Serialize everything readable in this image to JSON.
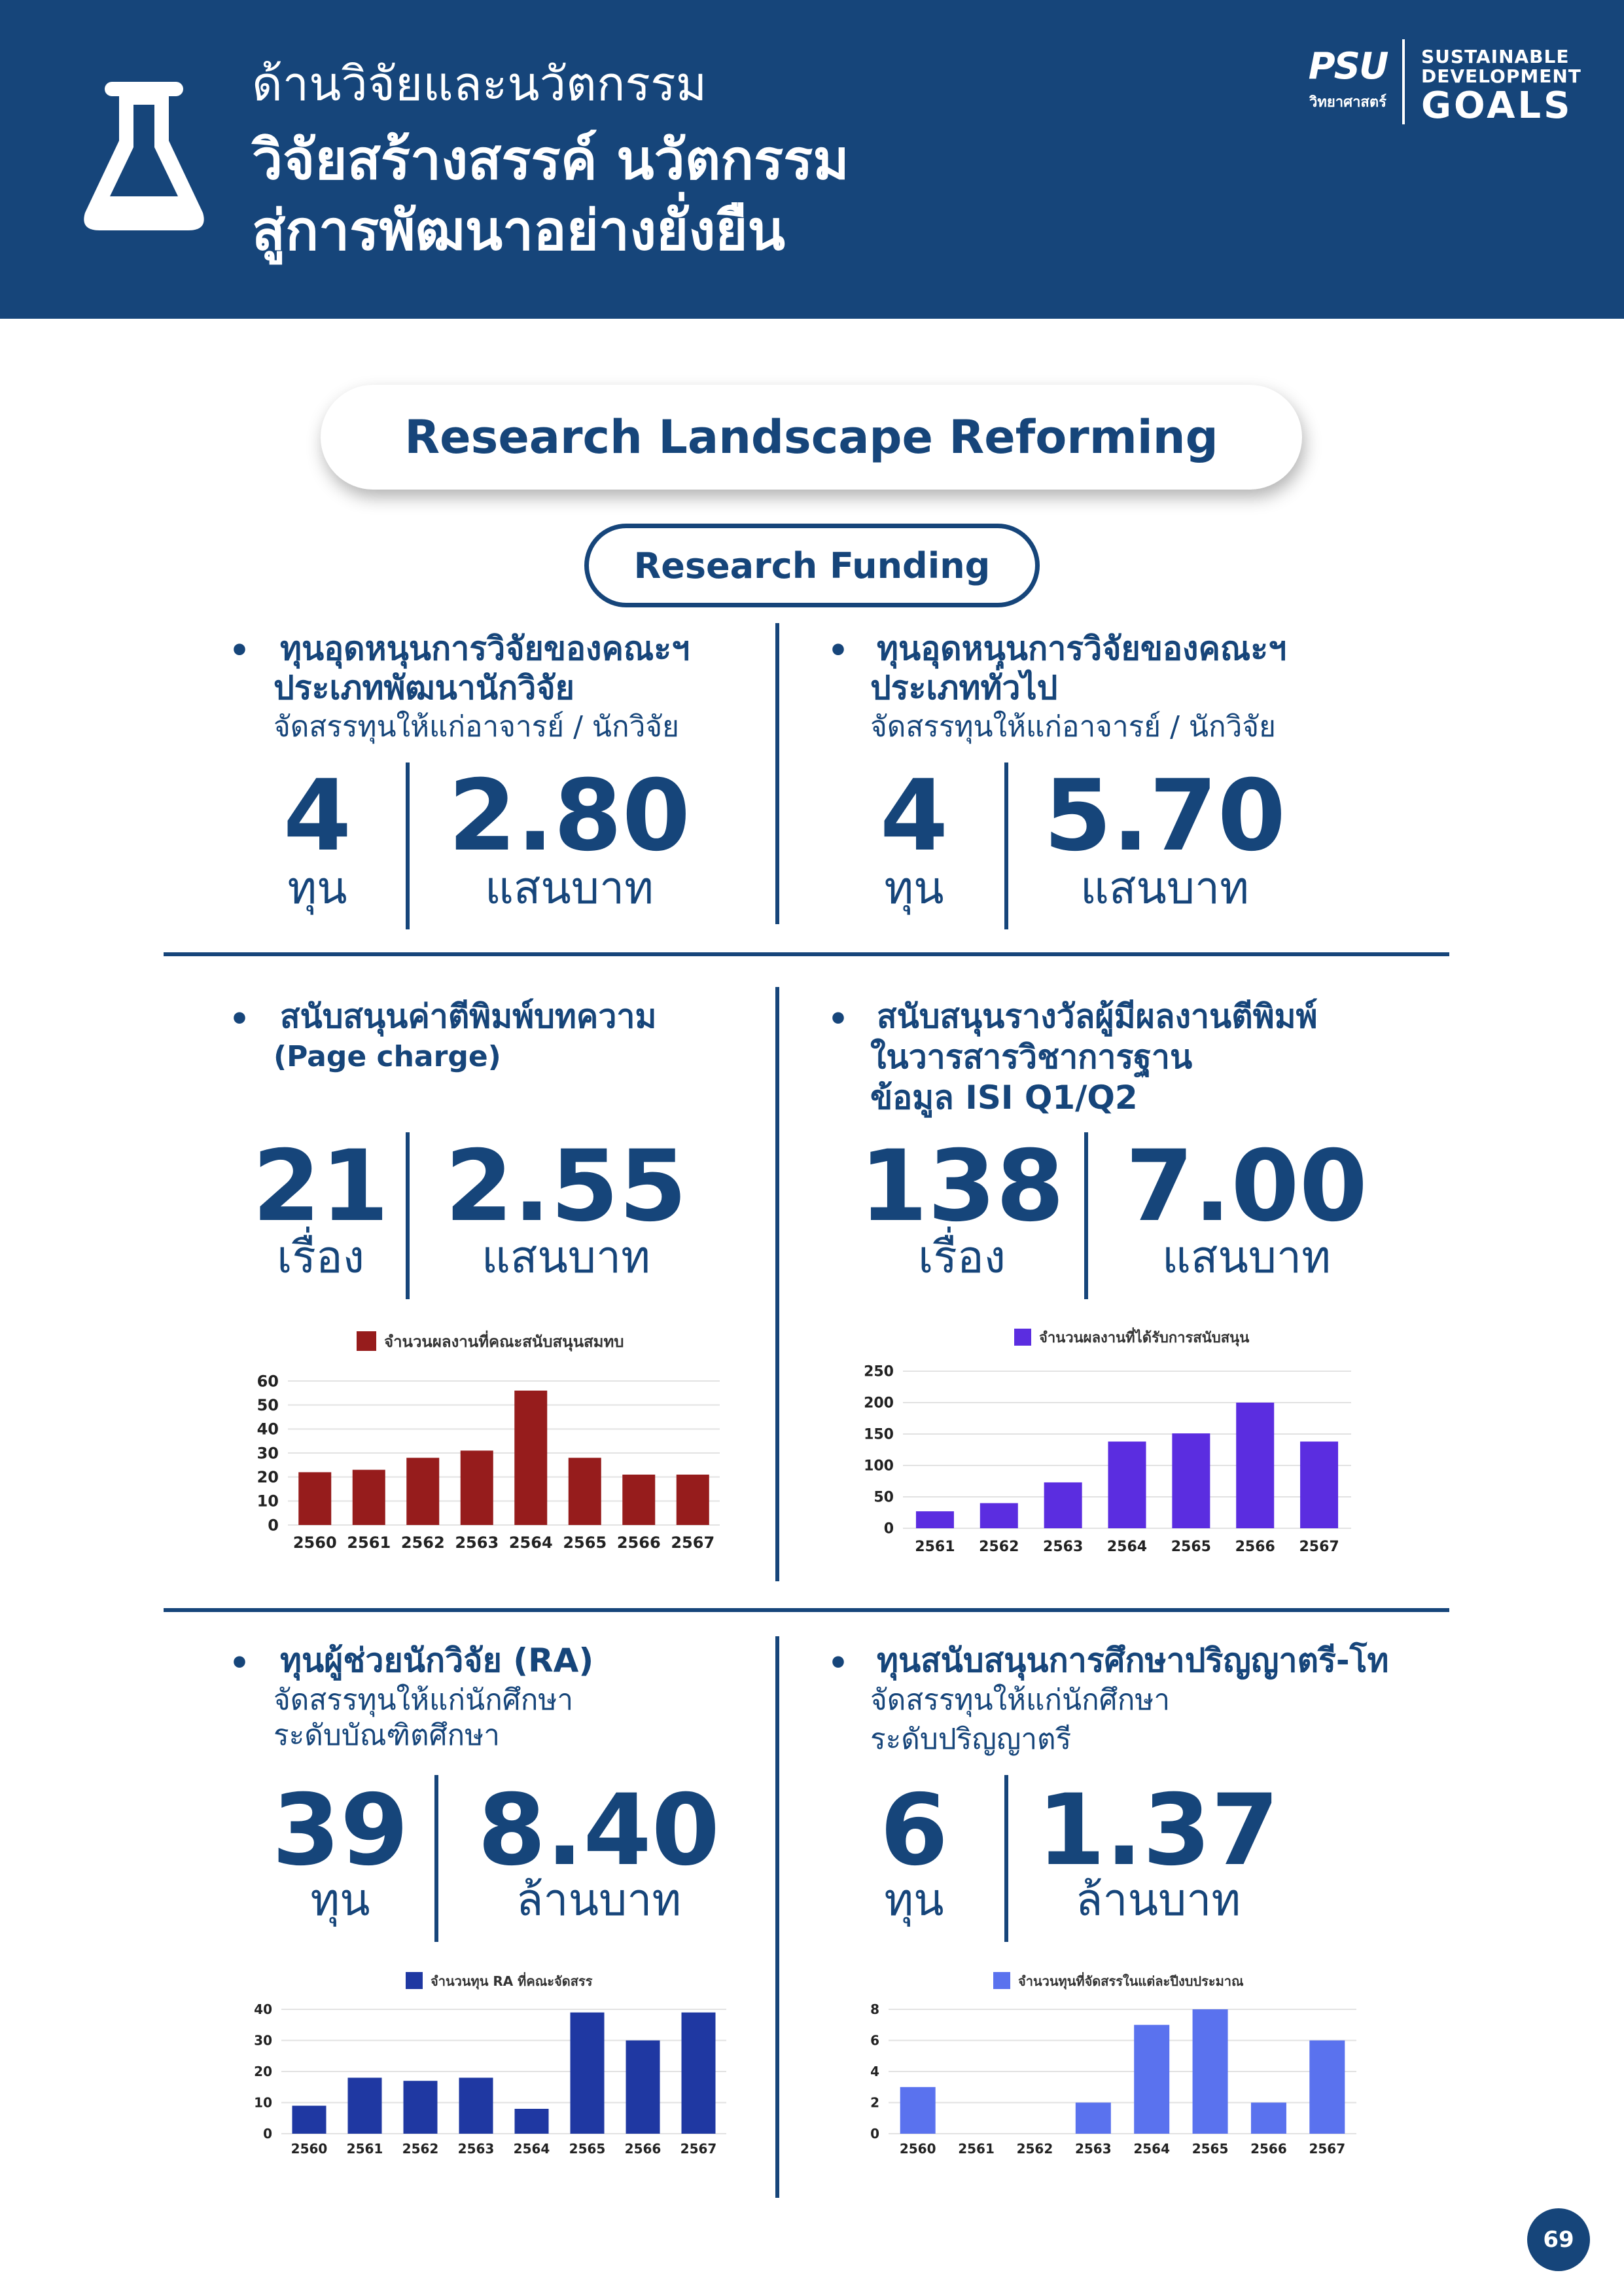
{
  "header": {
    "subtitle": "ด้านวิจัยและนวัตกรรม",
    "title_line1": "วิจัยสร้างสรรค์ นวัตกรรม",
    "title_line2": "สู่การพัฒนาอย่างยั่งยืน",
    "psu_logo": "PSU",
    "psu_name": "วิทยาศาสตร์",
    "sdg_line1": "SUSTAINABLE",
    "sdg_line2": "DEVELOPMENT",
    "sdg_line3": "GOALS"
  },
  "main_title": "Research Landscape Reforming",
  "sub_title": "Research Funding",
  "sections": [
    {
      "heading_line1": "ทุนอุดหนุนการวิจัยของคณะฯ",
      "heading_line2": "ประเภทพัฒนานักวิจัย",
      "desc_line1": "จัดสรรทุนให้แก่อาจารย์ / นักวิจัย",
      "count": "4",
      "count_unit": "ทุน",
      "amount": "2.80",
      "amount_unit": "แสนบาท"
    },
    {
      "heading_line1": "ทุนอุดหนุนการวิจัยของคณะฯ",
      "heading_line2": "ประเภททั่วไป",
      "desc_line1": "จัดสรรทุนให้แก่อาจารย์ / นักวิจัย",
      "count": "4",
      "count_unit": "ทุน",
      "amount": "5.70",
      "amount_unit": "แสนบาท"
    },
    {
      "heading_line1": "สนับสนุนค่าตีพิมพ์บทความ",
      "heading_line2": "(Page charge)",
      "count": "21",
      "count_unit": "เรื่อง",
      "amount": "2.55",
      "amount_unit": "แสนบาท"
    },
    {
      "heading_line1": "สนับสนุนรางวัลผู้มีผลงานตีพิมพ์",
      "heading_line2": "ในวารสารวิชาการฐาน",
      "heading_line3": "ข้อมูล ISI Q1/Q2",
      "count": "138",
      "count_unit": "เรื่อง",
      "amount": "7.00",
      "amount_unit": "แสนบาท"
    },
    {
      "heading_line1": "ทุนผู้ช่วยนักวิจัย (RA)",
      "desc_line1": "จัดสรรทุนให้แก่นักศึกษา",
      "desc_line2": "ระดับบัณฑิตศึกษา",
      "count": "39",
      "count_unit": "ทุน",
      "amount": "8.40",
      "amount_unit": "ล้านบาท"
    },
    {
      "heading_line1": "ทุนสนับสนุนการศึกษาปริญญาตรี-โท",
      "desc_line1": "จัดสรรทุนให้แก่นักศึกษา",
      "desc_line2": "ระดับปริญญาตรี",
      "count": "6",
      "count_unit": "ทุน",
      "amount": "1.37",
      "amount_unit": "ล้านบาท"
    }
  ],
  "chart_data": [
    {
      "type": "bar",
      "title": "จำนวนผลงานที่คณะสนับสนุนสมทบ",
      "legend": "จำนวนผลงานที่คณะสนับสนุนสมทบ",
      "categories": [
        "2560",
        "2561",
        "2562",
        "2563",
        "2564",
        "2565",
        "2566",
        "2567"
      ],
      "values": [
        22,
        23,
        28,
        31,
        56,
        28,
        21,
        21
      ],
      "ylim": [
        0,
        60
      ],
      "yticks": [
        0,
        10,
        20,
        30,
        40,
        50,
        60
      ],
      "color": "#961c1c"
    },
    {
      "type": "bar",
      "title": "จำนวนผลงานที่ได้รับการสนับสนุน",
      "legend": "จำนวนผลงานที่ได้รับการสนับสนุน",
      "categories": [
        "2561",
        "2562",
        "2563",
        "2564",
        "2565",
        "2566",
        "2567"
      ],
      "values": [
        27,
        40,
        73,
        138,
        151,
        200,
        138
      ],
      "ylim": [
        0,
        250
      ],
      "yticks": [
        0,
        50,
        100,
        150,
        200,
        250
      ],
      "color": "#5b2de0"
    },
    {
      "type": "bar",
      "title": "จำนวนทุน RA ที่คณะจัดสรร",
      "legend": "จำนวนทุน RA ที่คณะจัดสรร",
      "categories": [
        "2560",
        "2561",
        "2562",
        "2563",
        "2564",
        "2565",
        "2566",
        "2567"
      ],
      "values": [
        9,
        18,
        17,
        18,
        8,
        39,
        30,
        39
      ],
      "ylim": [
        0,
        40
      ],
      "yticks": [
        0,
        10,
        20,
        30,
        40
      ],
      "color": "#1f38a2"
    },
    {
      "type": "bar",
      "title": "จำนวนทุนที่จัดสรรในแต่ละปีงบประมาณ",
      "legend": "จำนวนทุนที่จัดสรรในแต่ละปีงบประมาณ",
      "categories": [
        "2560",
        "2561",
        "2562",
        "2563",
        "2564",
        "2565",
        "2566",
        "2567"
      ],
      "values": [
        3,
        0,
        0,
        2,
        7,
        8,
        2,
        6
      ],
      "ylim": [
        0,
        8
      ],
      "yticks": [
        0,
        2,
        4,
        6,
        8
      ],
      "color": "#5a72ee"
    }
  ],
  "page_number": "69"
}
